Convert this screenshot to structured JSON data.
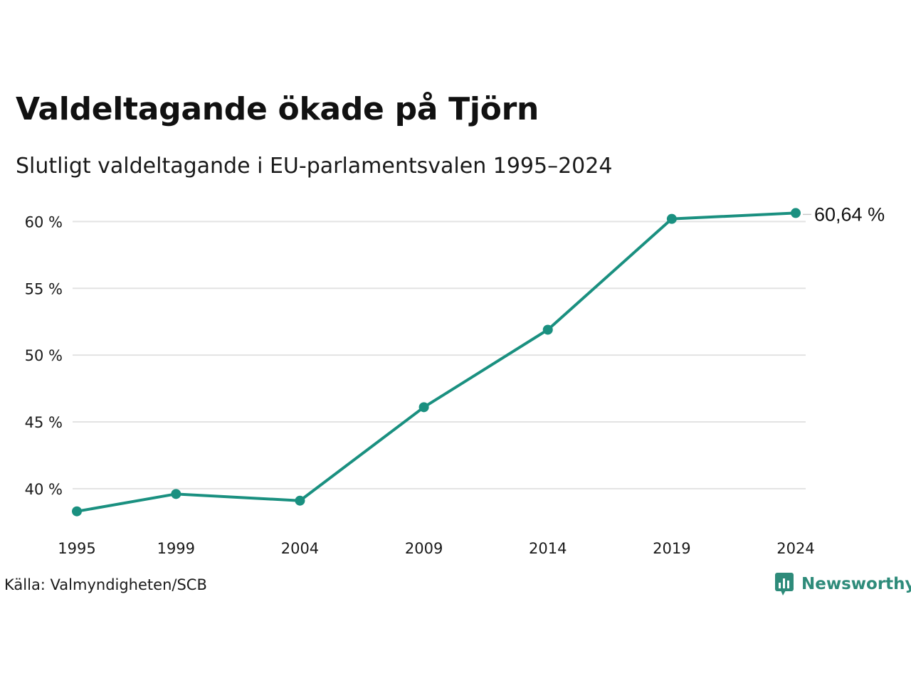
{
  "header": {
    "title": "Valdeltagande ökade på Tjörn",
    "subtitle": "Slutligt valdeltagande i EU-parlamentsvalen 1995–2024"
  },
  "footer": {
    "source": "Källa: Valmyndigheten/SCB",
    "brand": "Newsworthy",
    "brand_icon": "bar-chart-speech-bubble-icon"
  },
  "colors": {
    "series": "#1a9080",
    "grid": "#e3e3e3",
    "brand": "#2e8b7a"
  },
  "chart_data": {
    "type": "line",
    "title": "Valdeltagande ökade på Tjörn",
    "subtitle": "Slutligt valdeltagande i EU-parlamentsvalen 1995–2024",
    "xlabel": "",
    "ylabel": "",
    "categories": [
      "1995",
      "1999",
      "2004",
      "2009",
      "2014",
      "2019",
      "2024"
    ],
    "values": [
      38.3,
      39.6,
      39.1,
      46.1,
      51.9,
      60.2,
      60.64
    ],
    "ylim": [
      37.7,
      61.3
    ],
    "yticks": [
      40,
      45,
      50,
      55,
      60
    ],
    "ytick_labels": [
      "40 %",
      "45 %",
      "50 %",
      "55 %",
      "60 %"
    ],
    "grid": true,
    "last_value_label": "60,64 %"
  }
}
